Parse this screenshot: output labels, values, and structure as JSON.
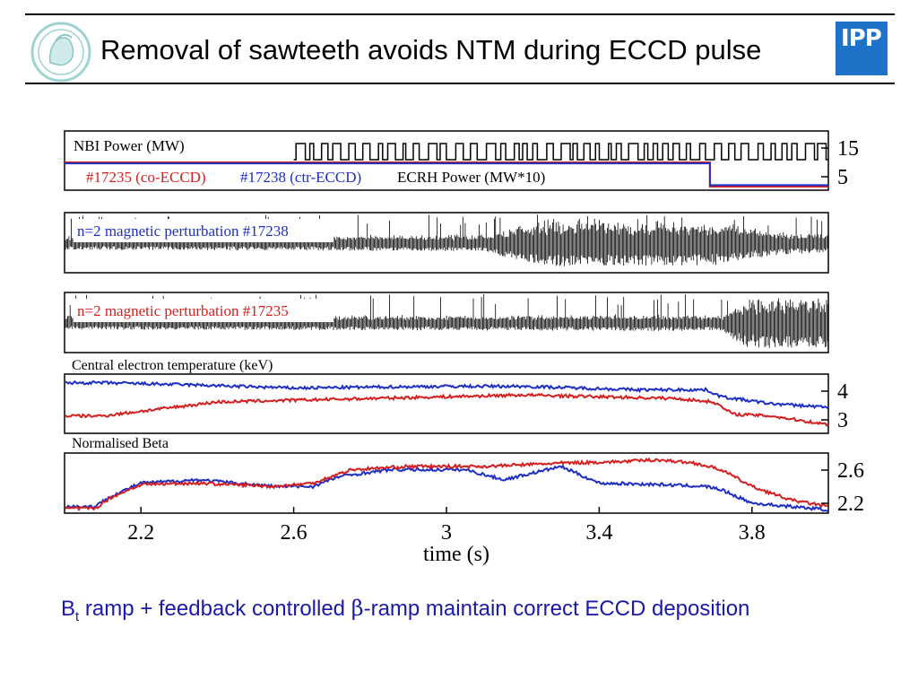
{
  "header": {
    "title": "Removal of sawteeth avoids NTM during ECCD pulse",
    "logo_right_text": "IPP",
    "logo_left_icon": "minerva-seal-icon"
  },
  "caption": {
    "b_letter": "B",
    "b_subscript": "t",
    "part1": " ramp + feedback controlled ",
    "beta_symbol": "β",
    "part2": "-ramp maintain correct ECCD deposition"
  },
  "colors": {
    "co_eccd": "#d42020",
    "ctr_eccd": "#1f2fc4",
    "signal": "#000000",
    "caption": "#1a1aa6",
    "ipp_logo": "#1e73c8"
  },
  "chart_data": {
    "type": "line",
    "x": {
      "label": "time  (s)",
      "ticks": [
        "2.2",
        "2.6",
        "3",
        "3.4",
        "3.8"
      ],
      "range": [
        2.0,
        4.0
      ]
    },
    "panels": [
      {
        "id": "power",
        "labels": [
          "NBI Power (MW)",
          "ECRH Power (MW*10)"
        ],
        "legend": [
          {
            "text": "#17235 (co-ECCD)",
            "color": "#d42020"
          },
          {
            "text": "#17238 (ctr-ECCD)",
            "color": "#1f2fc4"
          }
        ],
        "yticks": [
          "15",
          "5"
        ],
        "series": [
          {
            "name": "#17235 (co-ECCD)",
            "color": "#d42020",
            "x": [
              2.0,
              3.69,
              3.69,
              4.0
            ],
            "y": [
              5.0,
              5.0,
              0.0,
              0.0
            ]
          },
          {
            "name": "#17238 (ctr-ECCD)",
            "color": "#1f2fc4",
            "x": [
              2.0,
              3.69,
              3.69,
              4.0
            ],
            "y": [
              4.8,
              4.8,
              0.3,
              0.3
            ]
          }
        ],
        "nbi": {
          "x_start": 2.6,
          "low": 14.3,
          "high": 15.5
        }
      },
      {
        "id": "mhd-17238",
        "label": "n=2 magnetic perturbation #17238",
        "label_color": "#1f2fc4",
        "envelope": {
          "x": [
            2.0,
            3.1,
            3.2,
            3.3,
            3.7,
            3.8,
            3.9,
            4.0
          ],
          "amplitude": [
            0.25,
            0.3,
            0.7,
            0.85,
            0.8,
            0.55,
            0.4,
            0.35
          ]
        }
      },
      {
        "id": "mhd-17235",
        "label": "n=2 magnetic perturbation #17235",
        "label_color": "#d42020",
        "envelope": {
          "x": [
            2.0,
            3.72,
            3.78,
            3.85,
            4.0
          ],
          "amplitude": [
            0.25,
            0.3,
            0.85,
            0.95,
            0.9
          ]
        }
      },
      {
        "id": "te",
        "label": "Central electron temperature (keV)",
        "yticks": [
          "4",
          "3"
        ],
        "ylim": [
          2.6,
          4.3
        ],
        "series": [
          {
            "name": "#17238 (ctr-ECCD)",
            "color": "#1f2fc4",
            "x": [
              2.0,
              2.1,
              2.3,
              2.6,
              3.0,
              3.2,
              3.5,
              3.68,
              3.72,
              3.85,
              4.0
            ],
            "y": [
              4.05,
              4.05,
              4.0,
              3.9,
              3.95,
              3.95,
              3.85,
              3.85,
              3.65,
              3.45,
              3.35
            ]
          },
          {
            "name": "#17235 (co-ECCD)",
            "color": "#d42020",
            "x": [
              2.0,
              2.1,
              2.4,
              2.8,
              3.2,
              3.6,
              3.7,
              3.75,
              3.85,
              4.0
            ],
            "y": [
              3.1,
              3.1,
              3.5,
              3.6,
              3.7,
              3.6,
              3.5,
              3.15,
              3.1,
              2.85
            ]
          }
        ]
      },
      {
        "id": "beta",
        "label": "Normalised Beta",
        "yticks": [
          "2.6",
          "2.2"
        ],
        "ylim": [
          1.95,
          2.85
        ],
        "series": [
          {
            "name": "#17238 (ctr-ECCD)",
            "color": "#1f2fc4",
            "x": [
              2.0,
              2.08,
              2.12,
              2.2,
              2.35,
              2.55,
              2.65,
              2.72,
              2.85,
              3.05,
              3.15,
              3.3,
              3.4,
              3.55,
              3.68,
              3.72,
              3.8,
              3.9,
              4.0
            ],
            "y": [
              2.05,
              2.05,
              2.2,
              2.4,
              2.45,
              2.35,
              2.35,
              2.5,
              2.6,
              2.6,
              2.45,
              2.65,
              2.4,
              2.38,
              2.35,
              2.3,
              2.1,
              2.05,
              2.0
            ]
          },
          {
            "name": "#17235 (co-ECCD)",
            "color": "#d42020",
            "x": [
              2.0,
              2.08,
              2.12,
              2.2,
              2.35,
              2.55,
              2.65,
              2.75,
              2.9,
              3.1,
              3.3,
              3.45,
              3.55,
              3.65,
              3.72,
              3.8,
              3.9,
              4.0
            ],
            "y": [
              2.02,
              2.02,
              2.18,
              2.38,
              2.4,
              2.35,
              2.4,
              2.6,
              2.65,
              2.65,
              2.7,
              2.72,
              2.75,
              2.7,
              2.6,
              2.35,
              2.15,
              2.05
            ]
          }
        ]
      }
    ]
  }
}
